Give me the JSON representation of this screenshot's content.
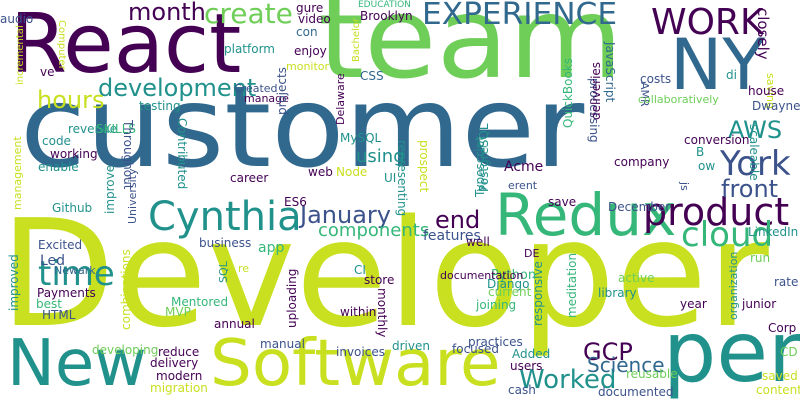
{
  "palette": {
    "purple": "#440154",
    "indigo": "#3b528b",
    "blue": "#31688e",
    "teal": "#21918c",
    "green": "#35b779",
    "lime": "#6ece58",
    "yellow": "#c8e020"
  },
  "words": [
    {
      "text": "Developer",
      "color": "yellow"
    },
    {
      "text": "customer",
      "color": "blue"
    },
    {
      "text": "team",
      "color": "lime"
    },
    {
      "text": "React",
      "color": "purple"
    },
    {
      "text": "Software",
      "color": "yellow"
    },
    {
      "text": "New",
      "color": "teal"
    },
    {
      "text": "per",
      "color": "teal"
    },
    {
      "text": "NY",
      "color": "blue"
    },
    {
      "text": "Redux",
      "color": "green"
    },
    {
      "text": "Cynthia",
      "color": "teal"
    },
    {
      "text": "WORK",
      "color": "purple"
    },
    {
      "text": "EXPERIENCE",
      "color": "blue"
    },
    {
      "text": "product",
      "color": "purple"
    },
    {
      "text": "York",
      "color": "indigo"
    },
    {
      "text": "cloud",
      "color": "green"
    },
    {
      "text": "development",
      "color": "teal"
    },
    {
      "text": "month",
      "color": "purple"
    },
    {
      "text": "create",
      "color": "lime"
    },
    {
      "text": "January",
      "color": "indigo"
    },
    {
      "text": "time",
      "color": "teal"
    },
    {
      "text": "Worked",
      "color": "teal"
    },
    {
      "text": "AWS",
      "color": "teal"
    },
    {
      "text": "front",
      "color": "indigo"
    },
    {
      "text": "end",
      "color": "purple"
    },
    {
      "text": "hours",
      "color": "yellow"
    },
    {
      "text": "GCP",
      "color": "purple"
    },
    {
      "text": "components",
      "color": "green"
    },
    {
      "text": "using",
      "color": "teal"
    },
    {
      "text": "Science",
      "color": "blue"
    },
    {
      "text": "closely",
      "color": "purple"
    },
    {
      "text": "Excited",
      "color": "indigo"
    },
    {
      "text": "Led",
      "color": "indigo"
    },
    {
      "text": "Payments",
      "color": "purple"
    },
    {
      "text": "Newark",
      "color": "blue"
    },
    {
      "text": "app",
      "color": "green"
    },
    {
      "text": "features",
      "color": "indigo"
    },
    {
      "text": "Typescript",
      "color": "teal"
    },
    {
      "text": "Mentored",
      "color": "green"
    },
    {
      "text": "MVP",
      "color": "lime"
    },
    {
      "text": "Python",
      "color": "green"
    },
    {
      "text": "Django",
      "color": "teal"
    },
    {
      "text": "library",
      "color": "teal"
    },
    {
      "text": "documentation",
      "color": "purple"
    },
    {
      "text": "audio",
      "color": "indigo"
    },
    {
      "text": "video",
      "color": "purple"
    },
    {
      "text": "Brooklyn",
      "color": "purple"
    },
    {
      "text": "EDUCATION",
      "color": "green"
    },
    {
      "text": "platform",
      "color": "teal"
    },
    {
      "text": "enjoy",
      "color": "purple"
    },
    {
      "text": "monitor",
      "color": "yellow"
    },
    {
      "text": "con",
      "color": "blue"
    },
    {
      "text": "gure",
      "color": "purple"
    },
    {
      "text": "Bachelor",
      "color": "yellow"
    },
    {
      "text": "Computer",
      "color": "yellow"
    },
    {
      "text": "CSS",
      "color": "blue"
    },
    {
      "text": "processing",
      "color": "indigo"
    },
    {
      "text": "JavaScript",
      "color": "blue"
    },
    {
      "text": "QuickBooks",
      "color": "green"
    },
    {
      "text": "deliveries",
      "color": "purple"
    },
    {
      "text": "costs",
      "color": "indigo"
    },
    {
      "text": "AMR",
      "color": "indigo"
    },
    {
      "text": "collaboratively",
      "color": "lime"
    },
    {
      "text": "saving",
      "color": "yellow"
    },
    {
      "text": "house",
      "color": "purple"
    },
    {
      "text": "Dwayne",
      "color": "indigo"
    },
    {
      "text": "di",
      "color": "teal"
    },
    {
      "text": "ve",
      "color": "purple"
    },
    {
      "text": "testing",
      "color": "teal"
    },
    {
      "text": "Created",
      "color": "indigo"
    },
    {
      "text": "manage",
      "color": "purple"
    },
    {
      "text": "incremental",
      "color": "yellow"
    },
    {
      "text": "code",
      "color": "teal"
    },
    {
      "text": "working",
      "color": "purple"
    },
    {
      "text": "enable",
      "color": "teal"
    },
    {
      "text": "revenue",
      "color": "teal"
    },
    {
      "text": "SKILLS",
      "color": "green"
    },
    {
      "text": "Throughout",
      "color": "indigo"
    },
    {
      "text": "projects",
      "color": "indigo"
    },
    {
      "text": "career",
      "color": "purple"
    },
    {
      "text": "Contributed",
      "color": "teal"
    },
    {
      "text": "web",
      "color": "purple"
    },
    {
      "text": "MySQL",
      "color": "teal"
    },
    {
      "text": "Node",
      "color": "yellow"
    },
    {
      "text": "Delaware",
      "color": "purple"
    },
    {
      "text": "UI",
      "color": "teal"
    },
    {
      "text": "representing",
      "color": "teal"
    },
    {
      "text": "prospect",
      "color": "yellow"
    },
    {
      "text": "PostgreSQL",
      "color": "teal"
    },
    {
      "text": "Acme",
      "color": "purple"
    },
    {
      "text": "erent",
      "color": "indigo"
    },
    {
      "text": "company",
      "color": "purple"
    },
    {
      "text": "conversion",
      "color": "purple"
    },
    {
      "text": "scaleable",
      "color": "teal"
    },
    {
      "text": "ow",
      "color": "teal"
    },
    {
      "text": "B",
      "color": "teal"
    },
    {
      "text": "js",
      "color": "indigo"
    },
    {
      "text": "management",
      "color": "yellow"
    },
    {
      "text": "Github",
      "color": "teal"
    },
    {
      "text": "improved",
      "color": "teal"
    },
    {
      "text": "best",
      "color": "green"
    },
    {
      "text": "HTML",
      "color": "indigo"
    },
    {
      "text": "improve",
      "color": "teal"
    },
    {
      "text": "University",
      "color": "indigo"
    },
    {
      "text": "ES6",
      "color": "purple"
    },
    {
      "text": "business",
      "color": "indigo"
    },
    {
      "text": "December",
      "color": "indigo"
    },
    {
      "text": "save",
      "color": "purple"
    },
    {
      "text": "LinkedIn",
      "color": "teal"
    },
    {
      "text": "active",
      "color": "lime"
    },
    {
      "text": "DE",
      "color": "purple"
    },
    {
      "text": "well",
      "color": "purple"
    },
    {
      "text": "run",
      "color": "lime"
    },
    {
      "text": "rate",
      "color": "indigo"
    },
    {
      "text": "re",
      "color": "yellow"
    },
    {
      "text": "SQL",
      "color": "teal"
    },
    {
      "text": "CI",
      "color": "teal"
    },
    {
      "text": "store",
      "color": "purple"
    },
    {
      "text": "current",
      "color": "lime"
    },
    {
      "text": "joining",
      "color": "green"
    },
    {
      "text": "uploading",
      "color": "purple"
    },
    {
      "text": "monthly",
      "color": "purple"
    },
    {
      "text": "within",
      "color": "purple"
    },
    {
      "text": "combinations",
      "color": "yellow"
    },
    {
      "text": "responsive",
      "color": "teal"
    },
    {
      "text": "meditation",
      "color": "green"
    },
    {
      "text": "year",
      "color": "purple"
    },
    {
      "text": "organization",
      "color": "teal"
    },
    {
      "text": "junior",
      "color": "purple"
    },
    {
      "text": "annual",
      "color": "purple"
    },
    {
      "text": "manual",
      "color": "indigo"
    },
    {
      "text": "developing",
      "color": "lime"
    },
    {
      "text": "reduce",
      "color": "purple"
    },
    {
      "text": "delivery",
      "color": "purple"
    },
    {
      "text": "modern",
      "color": "purple"
    },
    {
      "text": "migration",
      "color": "yellow"
    },
    {
      "text": "invoices",
      "color": "indigo"
    },
    {
      "text": "driven",
      "color": "teal"
    },
    {
      "text": "focused",
      "color": "indigo"
    },
    {
      "text": "practices",
      "color": "indigo"
    },
    {
      "text": "Added",
      "color": "teal"
    },
    {
      "text": "users",
      "color": "purple"
    },
    {
      "text": "cash",
      "color": "indigo"
    },
    {
      "text": "reusable",
      "color": "lime"
    },
    {
      "text": "documented",
      "color": "indigo"
    },
    {
      "text": "Corp",
      "color": "purple"
    },
    {
      "text": "CD",
      "color": "lime"
    },
    {
      "text": "saved",
      "color": "yellow"
    },
    {
      "text": "content",
      "color": "yellow"
    }
  ]
}
